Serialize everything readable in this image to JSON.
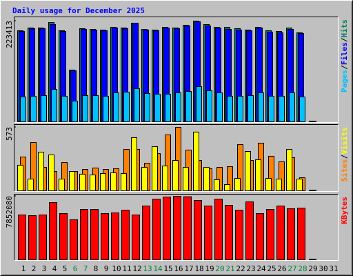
{
  "chart_data": {
    "type": "bar",
    "title": "Daily usage for December 2025",
    "title_color": "#0000ff",
    "categories": [
      1,
      2,
      3,
      4,
      5,
      6,
      7,
      8,
      9,
      10,
      11,
      12,
      13,
      14,
      15,
      16,
      17,
      18,
      19,
      20,
      21,
      22,
      23,
      24,
      25,
      26,
      27,
      28,
      29,
      30,
      31
    ],
    "category_colors": [
      "#000000",
      "#000000",
      "#000000",
      "#000000",
      "#000000",
      "#008040",
      "#008040",
      "#000000",
      "#000000",
      "#000000",
      "#000000",
      "#000000",
      "#008040",
      "#008040",
      "#000000",
      "#000000",
      "#000000",
      "#000000",
      "#000000",
      "#008040",
      "#008040",
      "#000000",
      "#000000",
      "#000000",
      "#000000",
      "#000000",
      "#008040",
      "#008040",
      "#000000",
      "#000000",
      "#000000"
    ],
    "separator": "/",
    "panels": [
      {
        "ylim": [
          0,
          223413
        ],
        "yticks": [
          223413
        ],
        "series": [
          {
            "name": "Hits",
            "color": "#00805c",
            "values": [
              202000,
              208100,
              208100,
              220300,
              202000,
              114800,
              206600,
              205000,
              203500,
              209600,
              208100,
              218800,
              205000,
              203500,
              209600,
              208100,
              214200,
              223413,
              215800,
              209600,
              209600,
              206600,
              203500,
              209600,
              202000,
              200500,
              208100,
              197400,
              0,
              null,
              null
            ]
          },
          {
            "name": "Files",
            "color": "#0000ff",
            "values": [
              200500,
              206600,
              206600,
              215800,
              200500,
              113300,
              205000,
              203500,
              202000,
              208100,
              206600,
              218800,
              203500,
              202000,
              208100,
              206600,
              212700,
              221900,
              212700,
              208100,
              205000,
              203500,
              202000,
              208100,
              199000,
              197400,
              205000,
              195800,
              0,
              null,
              null
            ]
          },
          {
            "name": "Pages",
            "color": "#00c0ff",
            "values": [
              55100,
              56600,
              58100,
              71900,
              56600,
              45900,
              58100,
              58100,
              56600,
              64300,
              65800,
              73400,
              62700,
              61200,
              61200,
              64300,
              67300,
              78000,
              68900,
              64300,
              56600,
              56600,
              58100,
              64300,
              56600,
              56600,
              64300,
              55100,
              0,
              null,
              null
            ]
          }
        ]
      },
      {
        "ylim": [
          0,
          573
        ],
        "yticks": [
          573
        ],
        "series": [
          {
            "name": "Visits",
            "color": "#ffff00",
            "values": [
              231,
              106,
              349,
              324,
              106,
              174,
              150,
              143,
              156,
              162,
              156,
              480,
              212,
              399,
              224,
              274,
              212,
              530,
              212,
              100,
              56,
              112,
              355,
              280,
              112,
              106,
              374,
              106,
              0,
              null,
              null
            ]
          },
          {
            "name": "Sites",
            "color": "#ff8000",
            "values": [
              305,
              436,
              212,
              174,
              255,
              174,
              193,
              206,
              193,
              199,
              374,
              374,
              249,
              336,
              505,
              573,
              368,
              274,
              199,
              212,
              218,
              417,
              274,
              430,
              312,
              262,
              299,
              118,
              0,
              null,
              null
            ]
          }
        ]
      },
      {
        "ylim": [
          0,
          7852080
        ],
        "yticks": [
          7852080
        ],
        "series": [
          {
            "name": "KBytes",
            "color": "#ff0000",
            "values": [
              5548000,
              5462000,
              5548000,
              7084000,
              5718000,
              4950000,
              6230000,
              6230000,
              5718000,
              5804000,
              6145000,
              5548000,
              6657000,
              7511000,
              7767000,
              7852080,
              7800000,
              7340000,
              6657000,
              7511000,
              6743000,
              6145000,
              7169000,
              5718000,
              6230000,
              6657000,
              6316000,
              6401000,
              0,
              null,
              null
            ]
          }
        ]
      }
    ]
  }
}
